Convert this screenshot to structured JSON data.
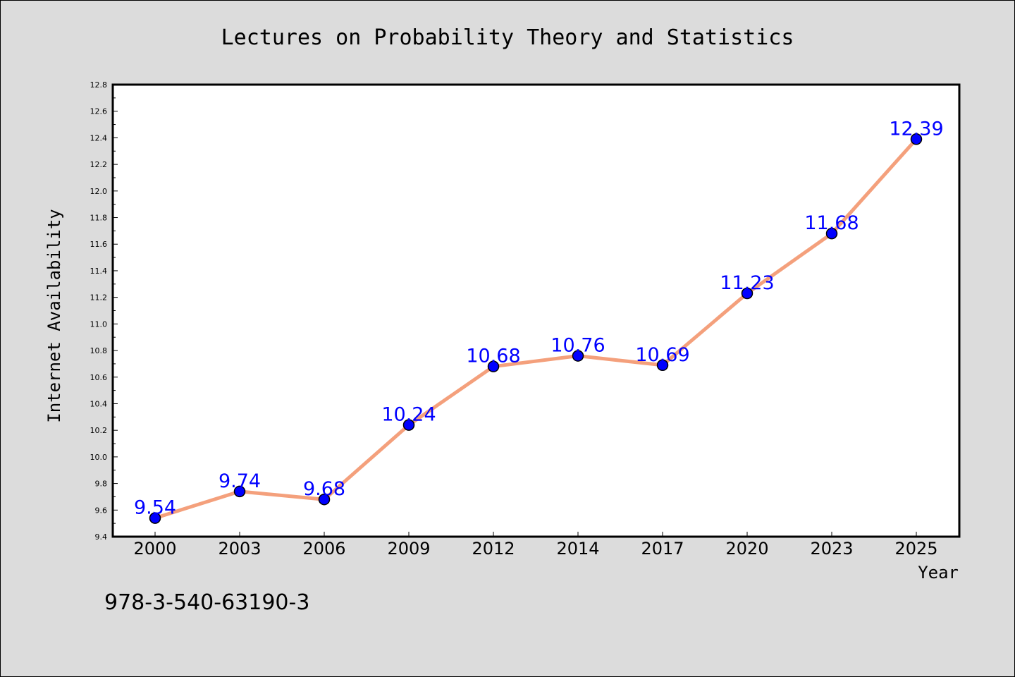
{
  "colors": {
    "background": "#dcdcdc",
    "plot_background": "#ffffff",
    "line": "#f4a07c",
    "marker": "#0000ff",
    "label": "#0000ff"
  },
  "footer": "978-3-540-63190-3",
  "chart_data": {
    "type": "line",
    "title": "Lectures on Probability Theory and Statistics",
    "xlabel": "Year",
    "ylabel": "Internet Availability",
    "categories": [
      "2000",
      "2003",
      "2006",
      "2009",
      "2012",
      "2014",
      "2017",
      "2020",
      "2023",
      "2025"
    ],
    "series": [
      {
        "values": [
          9.54,
          9.74,
          9.68,
          10.24,
          10.68,
          10.76,
          10.69,
          11.23,
          11.68,
          12.39
        ]
      }
    ],
    "data_labels": [
      "9.54",
      "9.74",
      "9.68",
      "10.24",
      "10.68",
      "10.76",
      "10.69",
      "11.23",
      "11.68",
      "12.39"
    ],
    "ylim": [
      9.4,
      12.8
    ],
    "yticks": [
      "9.4",
      "9.6",
      "9.8",
      "10.0",
      "10.2",
      "10.4",
      "10.6",
      "10.8",
      "11.0",
      "11.2",
      "11.4",
      "11.6",
      "11.8",
      "12.0",
      "12.2",
      "12.4",
      "12.6",
      "12.8"
    ],
    "grid": false,
    "legend": "none",
    "marker": "circle"
  }
}
